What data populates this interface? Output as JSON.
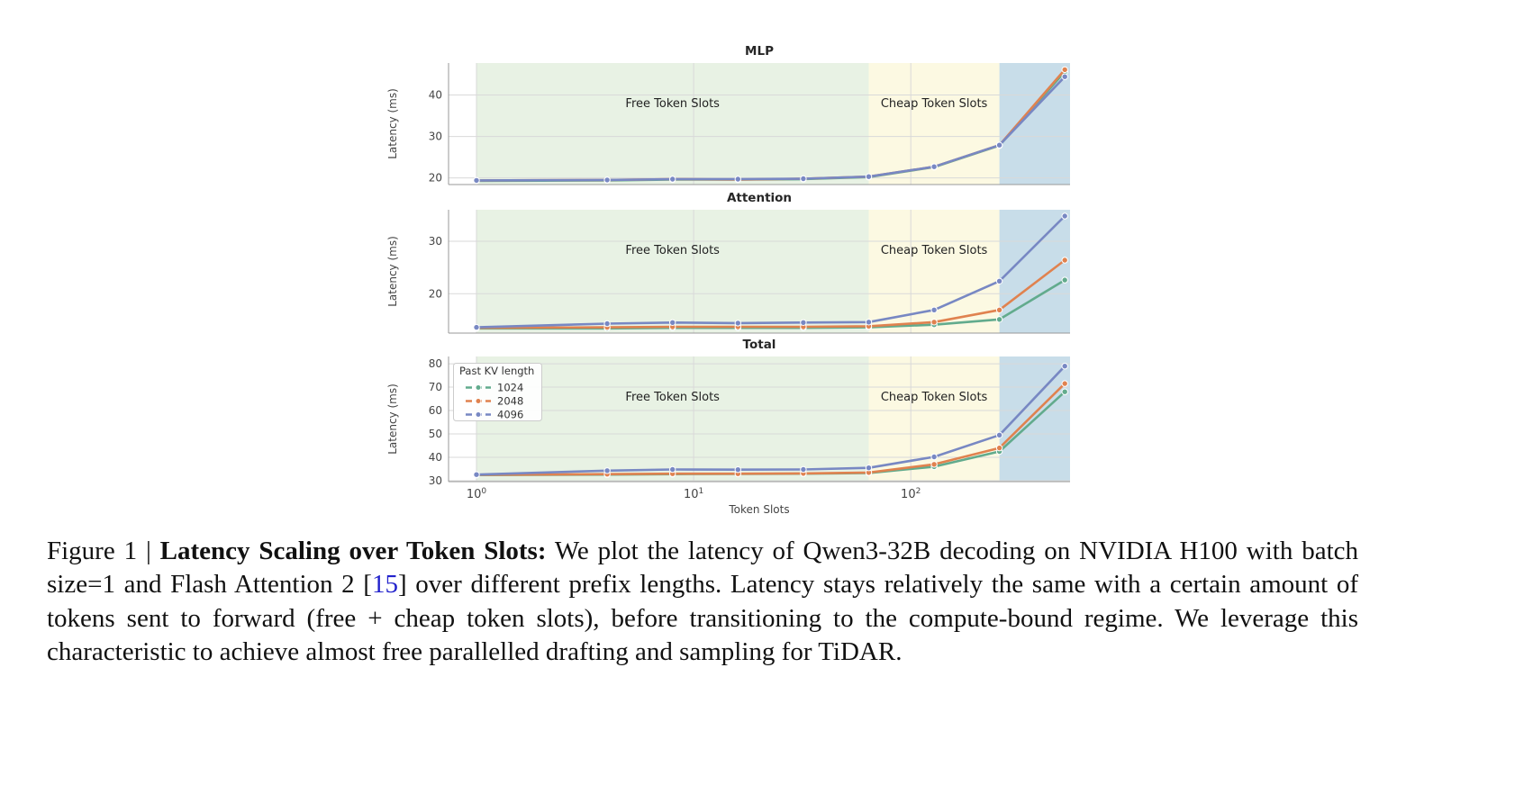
{
  "figure": {
    "xlabel": "Token Slots",
    "xlim": [
      0.744,
      541
    ],
    "x": [
      1,
      4,
      8,
      16,
      32,
      64,
      128,
      256,
      512
    ],
    "xticks": [
      {
        "base": "10",
        "exp": "0",
        "value": 1
      },
      {
        "base": "10",
        "exp": "1",
        "value": 10
      },
      {
        "base": "10",
        "exp": "2",
        "value": 100
      }
    ],
    "regions": [
      {
        "label": "Free Token Slots",
        "name": "free-token-slots",
        "from": 1,
        "to": 64,
        "color": "#e8f2e4"
      },
      {
        "label": "Cheap Token Slots",
        "name": "cheap-token-slots",
        "from": 64,
        "to": 256,
        "color": "#fcf9e2"
      },
      {
        "label": "",
        "name": "compute-bound",
        "from": 256,
        "to": 541,
        "color": "#c8dde9"
      }
    ],
    "legend": {
      "title": "Past KV length",
      "entries": [
        {
          "label": "1024",
          "color": "#62ab8d"
        },
        {
          "label": "2048",
          "color": "#e0824f"
        },
        {
          "label": "4096",
          "color": "#7888c3"
        }
      ]
    }
  },
  "chart_data": [
    {
      "type": "line",
      "title": "MLP",
      "ylabel": "Latency (ms)",
      "xscale": "log",
      "x": [
        1,
        4,
        8,
        16,
        32,
        64,
        128,
        256,
        512
      ],
      "yticks": [
        20,
        30,
        40
      ],
      "ylim": [
        18.4,
        47.7
      ],
      "grid": true,
      "annotations": [
        "Free Token Slots",
        "Cheap Token Slots"
      ],
      "series": [
        {
          "name": "1024",
          "color": "#62ab8d",
          "values": [
            19.3,
            19.4,
            19.6,
            19.6,
            19.7,
            20.2,
            22.6,
            27.8,
            45.6
          ]
        },
        {
          "name": "2048",
          "color": "#e0824f",
          "values": [
            19.4,
            19.5,
            19.7,
            19.6,
            19.8,
            20.3,
            22.7,
            27.9,
            46.1
          ]
        },
        {
          "name": "4096",
          "color": "#7888c3",
          "values": [
            19.4,
            19.5,
            19.7,
            19.7,
            19.8,
            20.3,
            22.7,
            27.9,
            44.4
          ]
        }
      ],
      "legend": false
    },
    {
      "type": "line",
      "title": "Attention",
      "ylabel": "Latency (ms)",
      "xscale": "log",
      "x": [
        1,
        4,
        8,
        16,
        32,
        64,
        128,
        256,
        512
      ],
      "yticks": [
        20,
        30
      ],
      "ylim": [
        12.5,
        36.0
      ],
      "grid": true,
      "annotations": [
        "Free Token Slots",
        "Cheap Token Slots"
      ],
      "series": [
        {
          "name": "1024",
          "color": "#62ab8d",
          "values": [
            13.4,
            13.4,
            13.5,
            13.5,
            13.5,
            13.6,
            14.1,
            15.1,
            22.6
          ]
        },
        {
          "name": "2048",
          "color": "#e0824f",
          "values": [
            13.5,
            13.6,
            13.7,
            13.7,
            13.7,
            13.8,
            14.6,
            16.9,
            26.4
          ]
        },
        {
          "name": "4096",
          "color": "#7888c3",
          "values": [
            13.6,
            14.3,
            14.5,
            14.4,
            14.5,
            14.6,
            16.9,
            22.4,
            34.8
          ]
        }
      ],
      "legend": false
    },
    {
      "type": "line",
      "title": "Total",
      "ylabel": "Latency (ms)",
      "xscale": "log",
      "x": [
        1,
        4,
        8,
        16,
        32,
        64,
        128,
        256,
        512
      ],
      "yticks": [
        30,
        40,
        50,
        60,
        70,
        80
      ],
      "ylim": [
        29.6,
        83.1
      ],
      "grid": true,
      "annotations": [
        "Free Token Slots",
        "Cheap Token Slots"
      ],
      "series": [
        {
          "name": "1024",
          "color": "#62ab8d",
          "values": [
            32.4,
            32.6,
            32.8,
            32.9,
            33.0,
            33.3,
            36.0,
            42.5,
            68.0
          ]
        },
        {
          "name": "2048",
          "color": "#e0824f",
          "values": [
            32.5,
            32.8,
            33.0,
            33.0,
            33.1,
            33.5,
            37.0,
            44.0,
            71.5
          ]
        },
        {
          "name": "4096",
          "color": "#7888c3",
          "values": [
            32.6,
            34.3,
            34.8,
            34.7,
            34.8,
            35.5,
            40.2,
            49.5,
            79.0
          ]
        }
      ],
      "legend": true
    }
  ],
  "caption": {
    "figure_label": "Figure 1",
    "separator": "|",
    "bold_title": "Latency Scaling over Token Slots:",
    "text_before_cite": "We plot the latency of Qwen3-32B decoding on NVIDIA H100 with batch size=1 and Flash Attention 2",
    "cite_open": "[",
    "citation": "15",
    "cite_close": "]",
    "text_after_cite": "over different prefix lengths. Latency stays relatively the same with a certain amount of tokens sent to forward (free + cheap token slots), before transitioning to the compute-bound regime. We leverage this characteristic to achieve almost free parallelled drafting and sampling for TiDAR."
  }
}
